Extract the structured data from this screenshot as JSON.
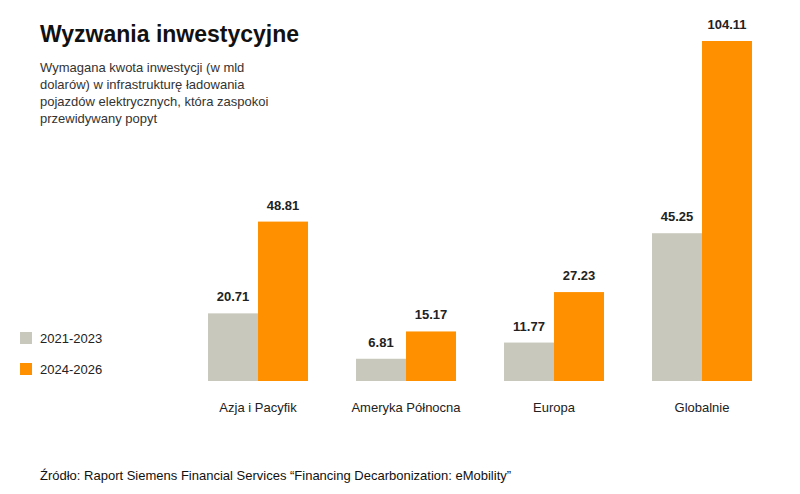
{
  "chart_data": {
    "type": "bar",
    "title": "Wyzwania inwestycyjne",
    "subtitle": [
      "Wymagana kwota inwestycji (w mld",
      "dolarów) w infrastrukturę ładowania",
      "pojazdów elektrycznych, która zaspokoi",
      "przewidywany popyt"
    ],
    "source": "Źródło: Raport Siemens Financial Services “Financing Decarbonization: eMobility”",
    "categories": [
      "Azja i Pacyfik",
      "Ameryka Północna",
      "Europa",
      "Globalnie"
    ],
    "series": [
      {
        "name": "2021-2023",
        "color": "#c9c8bc",
        "values": [
          20.71,
          6.81,
          11.77,
          45.25
        ]
      },
      {
        "name": "2024-2026",
        "color": "#ff9100",
        "values": [
          48.81,
          15.17,
          27.23,
          104.11
        ]
      }
    ],
    "ylim": [
      0,
      104.11
    ],
    "data_labels": true,
    "tick_labels": "x",
    "legend": "left",
    "grid": false
  }
}
